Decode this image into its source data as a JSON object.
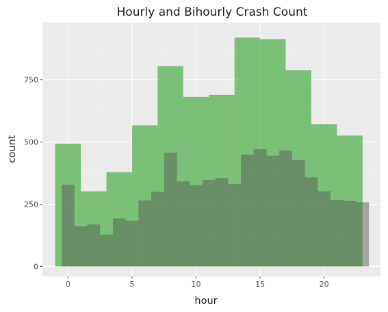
{
  "chart_data": {
    "type": "bar",
    "title": "Hourly and Bihourly Crash Count",
    "xlabel": "hour",
    "ylabel": "count",
    "xlim": [
      -2,
      24.4
    ],
    "ylim": [
      -40,
      980
    ],
    "x_ticks": [
      0,
      5,
      10,
      15,
      20
    ],
    "x_tick_labels": [
      "0",
      "5",
      "10",
      "15",
      "20"
    ],
    "y_ticks": [
      0,
      250,
      500,
      750
    ],
    "y_tick_labels": [
      "0",
      "250",
      "500",
      "750"
    ],
    "grid": true,
    "legend": "none",
    "series": [
      {
        "kind": "bihourly",
        "color": "#4daf4a",
        "opacity": 0.72,
        "bin_width": 2,
        "x": [
          0,
          2,
          4,
          6,
          8,
          10,
          12,
          14,
          16,
          18,
          20,
          22
        ],
        "values": [
          493,
          302,
          379,
          567,
          805,
          681,
          689,
          920,
          913,
          789,
          572,
          526
        ]
      },
      {
        "kind": "hourly",
        "color": "#555555",
        "opacity": 0.48,
        "bin_width": 1,
        "x": [
          0,
          1,
          2,
          3,
          4,
          5,
          6,
          7,
          8,
          9,
          10,
          11,
          12,
          13,
          14,
          15,
          16,
          17,
          18,
          19,
          20,
          21,
          22,
          23
        ],
        "values": [
          329,
          162,
          169,
          128,
          193,
          184,
          265,
          300,
          457,
          342,
          327,
          348,
          356,
          331,
          450,
          471,
          445,
          465,
          428,
          358,
          302,
          268,
          263,
          258
        ]
      }
    ]
  }
}
